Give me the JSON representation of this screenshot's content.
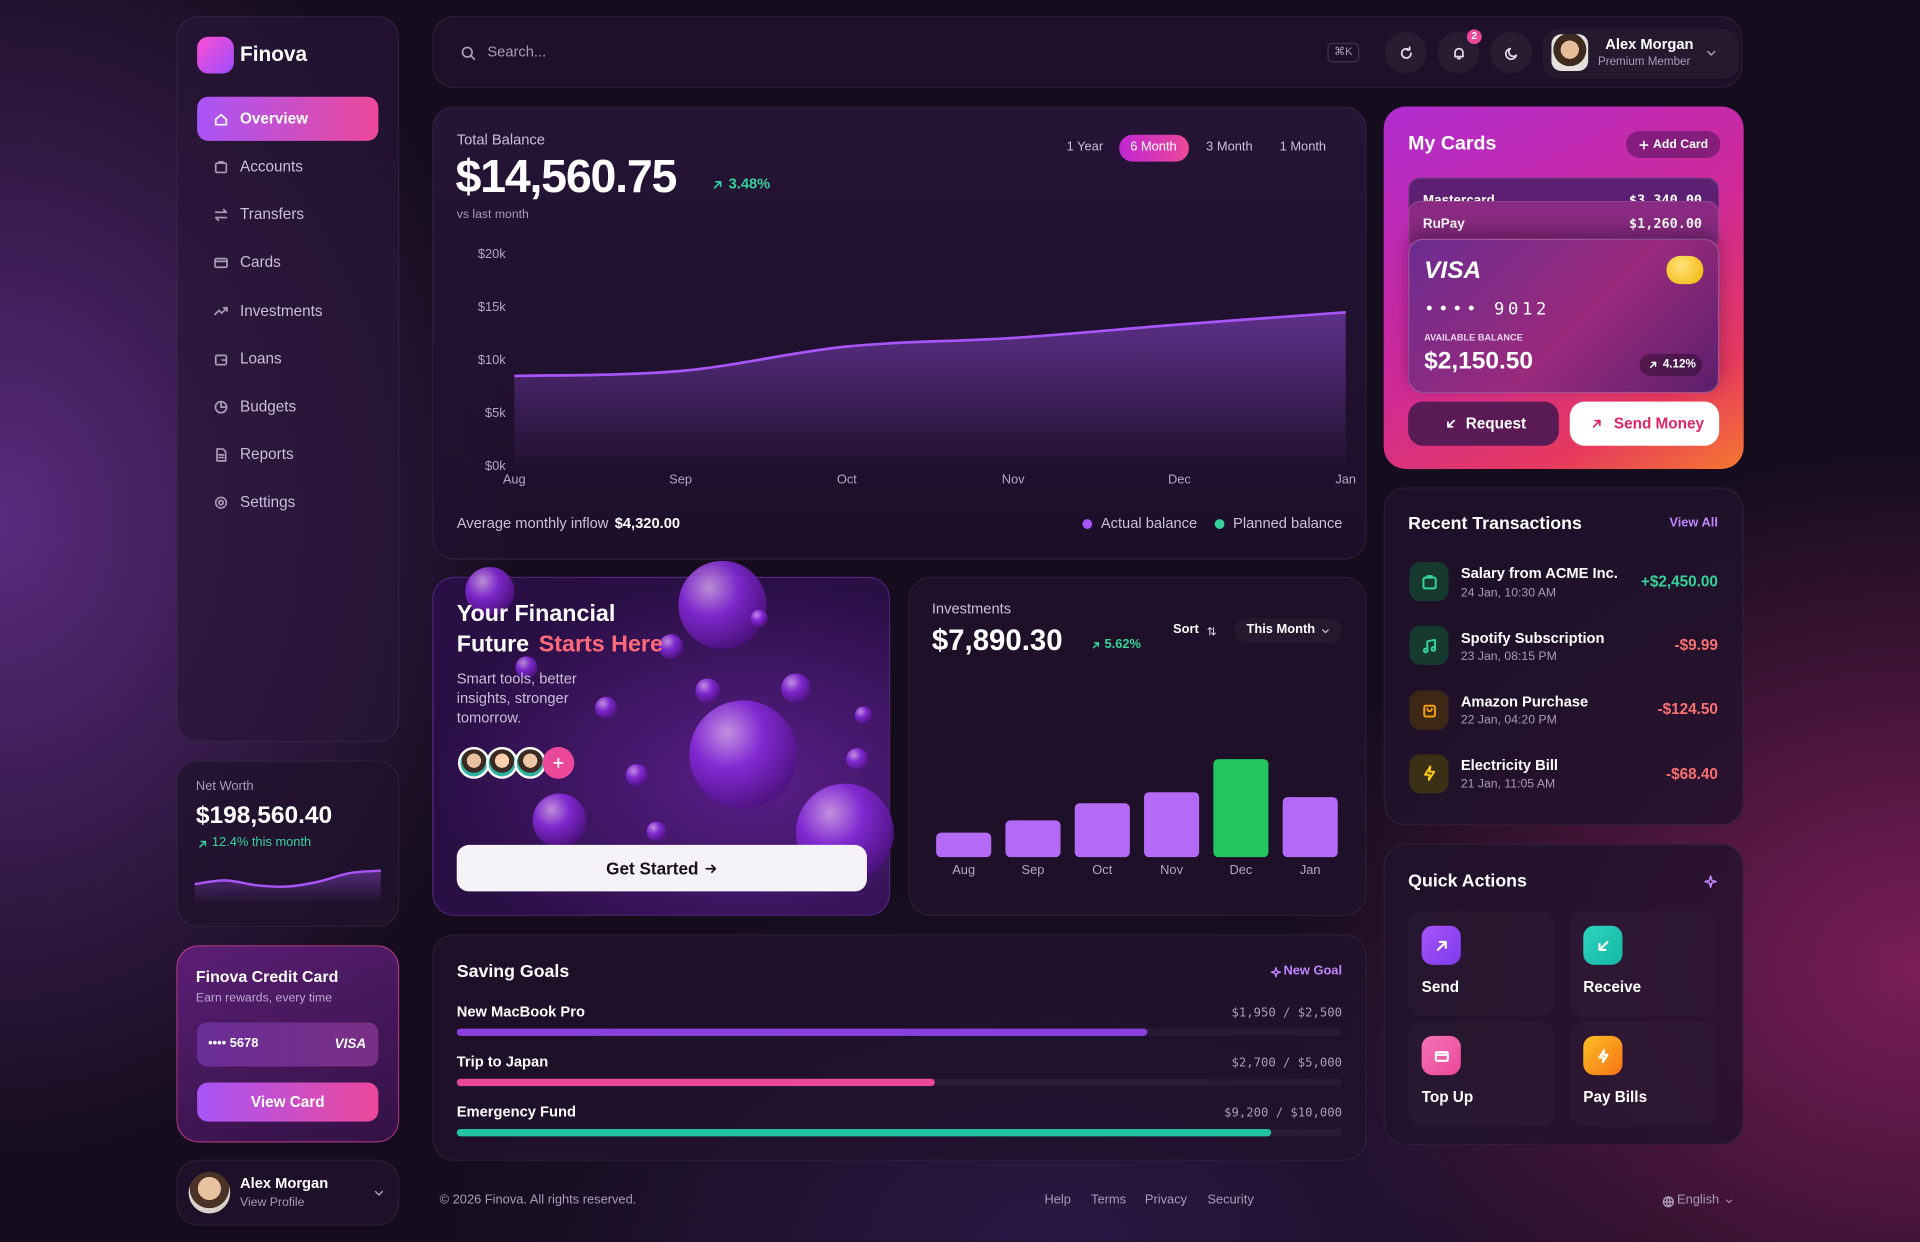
{
  "brand": "Finova",
  "nav": {
    "items": [
      "Overview",
      "Accounts",
      "Transfers",
      "Cards",
      "Investments",
      "Loans",
      "Budgets",
      "Reports",
      "Settings"
    ],
    "active": 0
  },
  "net_worth": {
    "label": "Net Worth",
    "value": "$198,560.40",
    "change": "12.4% this month"
  },
  "credit_card": {
    "title": "Finova Credit Card",
    "subtitle": "Earn rewards, every time",
    "number": "•••• 5678",
    "brand": "VISA",
    "button": "View Card"
  },
  "profile": {
    "name": "Alex Morgan",
    "link": "View Profile"
  },
  "topbar": {
    "search": "Search...",
    "shortcut": "⌘K",
    "notifications": "2",
    "user_name": "Alex Morgan",
    "user_tier": "Premium Member"
  },
  "balance": {
    "label": "Total Balance",
    "value": "$14,560.75",
    "change": "3.48%",
    "change_note": "vs last month",
    "ranges": [
      "1 Year",
      "6 Month",
      "3 Month",
      "1 Month"
    ],
    "active_range": 1,
    "inflow_label": "Average monthly inflow",
    "inflow_value": "$4,320.00"
  },
  "cards": {
    "title": "My Cards",
    "add": "Add Card",
    "stack": [
      {
        "name": "Mastercard",
        "amount": "$3,340.00"
      },
      {
        "name": "RuPay",
        "amount": "$1,260.00"
      }
    ],
    "main": {
      "brand": "VISA",
      "number": "•••• 9012",
      "balance_label": "AVAILABLE BALANCE",
      "balance": "$2,150.50",
      "change": "4.12%"
    },
    "request": "Request",
    "send": "Send Money"
  },
  "promo": {
    "title": "Your Financial",
    "title2": "Future",
    "highlight": "Starts Here",
    "text": "Smart tools, better insights, stronger tomorrow.",
    "button": "Get Started"
  },
  "investments": {
    "label": "Investments",
    "value": "$7,890.30",
    "change": "5.62%",
    "sort": "Sort",
    "period": "This Month"
  },
  "goals": {
    "title": "Saving Goals",
    "add": "New Goal",
    "items": [
      {
        "name": "New MacBook Pro",
        "current": 1950,
        "target": 2500,
        "label": "$1,950 / $2,500",
        "color": "#8b3fe0"
      },
      {
        "name": "Trip to Japan",
        "current": 2700,
        "target": 5000,
        "label": "$2,700 / $5,000",
        "color": "#ec4899"
      },
      {
        "name": "Emergency Fund",
        "current": 9200,
        "target": 10000,
        "label": "$9,200 / $10,000",
        "color": "#22c1a0"
      }
    ]
  },
  "transactions": {
    "title": "Recent Transactions",
    "link": "View All",
    "items": [
      {
        "name": "Salary from ACME Inc.",
        "date": "24 Jan, 10:30 AM",
        "amount": "+$2,450.00"
      },
      {
        "name": "Spotify Subscription",
        "date": "23 Jan, 08:15 PM",
        "amount": "-$9.99"
      },
      {
        "name": "Amazon Purchase",
        "date": "22 Jan, 04:20 PM",
        "amount": "-$124.50"
      },
      {
        "name": "Electricity Bill",
        "date": "21 Jan, 11:05 AM",
        "amount": "-$68.40"
      }
    ]
  },
  "quick_actions": {
    "title": "Quick Actions",
    "items": [
      "Send",
      "Receive",
      "Top Up",
      "Pay Bills"
    ]
  },
  "footer": {
    "copyright": "© 2026 Finova. All rights reserved.",
    "links": [
      "Help",
      "Terms",
      "Privacy",
      "Security"
    ],
    "language": "English"
  },
  "chart_data": [
    {
      "type": "line",
      "categories": [
        "Aug",
        "Sep",
        "Oct",
        "Nov",
        "Dec",
        "Jan"
      ],
      "series": [
        {
          "name": "Actual balance",
          "color": "#a855f7",
          "values": [
            8550,
            9020,
            11330,
            12140,
            13410,
            14560
          ]
        },
        {
          "name": "Planned balance",
          "color": "#34d399",
          "values": [
            null,
            null,
            null,
            null,
            null,
            null
          ]
        }
      ],
      "ylim": [
        0,
        20000
      ],
      "yticks": [
        {
          "value": 0,
          "label": "$0k"
        },
        {
          "value": 5000,
          "label": "$5k"
        },
        {
          "value": 10000,
          "label": "$10k"
        },
        {
          "value": 15000,
          "label": "$15k"
        },
        {
          "value": 20000,
          "label": "$20k"
        }
      ]
    },
    {
      "type": "bar",
      "categories": [
        "Aug",
        "Sep",
        "Oct",
        "Nov",
        "Dec",
        "Jan"
      ],
      "values": [
        20,
        30,
        44,
        53,
        80,
        49
      ],
      "colors": [
        "#b56af7",
        "#b56af7",
        "#b56af7",
        "#b56af7",
        "#22c55e",
        "#b56af7"
      ]
    },
    {
      "type": "sparkline",
      "values": [
        16,
        19,
        15,
        14,
        18,
        25,
        27
      ],
      "color": "#a855f7"
    }
  ]
}
